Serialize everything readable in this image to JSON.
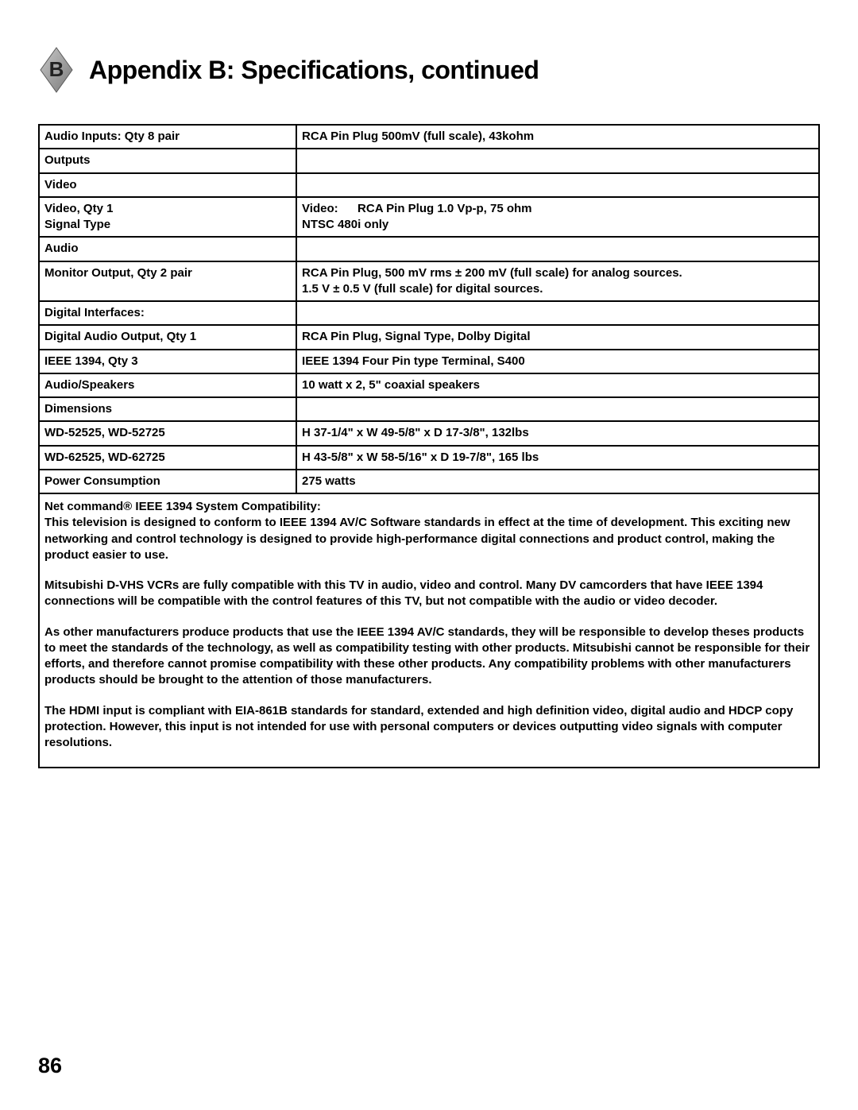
{
  "header": {
    "badge_letter": "B",
    "title": "Appendix B: Specifications, continued"
  },
  "table": {
    "rows": [
      {
        "left": "Audio Inputs: Qty 8 pair",
        "right": "RCA Pin Plug 500mV (full scale), 43kohm"
      },
      {
        "left": "Outputs",
        "right": "",
        "section": true
      },
      {
        "left": "Video",
        "right": ""
      },
      {
        "left": "Video, Qty 1\nSignal Type",
        "right_label": "Video:",
        "right_a": "RCA Pin Plug 1.0 Vp-p, 75 ohm",
        "right_b": "NTSC 480i only",
        "two_line": true
      },
      {
        "left": "Audio",
        "right": ""
      },
      {
        "left": "Monitor Output, Qty 2 pair",
        "right": "RCA Pin Plug, 500 mV rms ± 200 mV (full scale) for analog sources.\n1.5 V ± 0.5 V (full scale) for digital sources."
      },
      {
        "left": "Digital Interfaces:",
        "right": ""
      },
      {
        "left": "Digital Audio Output, Qty 1",
        "right": "RCA Pin Plug, Signal Type, Dolby Digital"
      },
      {
        "left": "IEEE 1394, Qty 3",
        "right": "IEEE 1394 Four Pin type Terminal, S400"
      },
      {
        "left": "Audio/Speakers",
        "right": "10 watt x 2, 5\" coaxial speakers"
      },
      {
        "left": "Dimensions",
        "right": ""
      },
      {
        "left": "WD-52525, WD-52725",
        "right": "H 37-1/4\" x W 49-5/8\" x D 17-3/8\", 132lbs"
      },
      {
        "left": "WD-62525, WD-62725",
        "right": "H 43-5/8\" x W 58-5/16\" x D 19-7/8\", 165 lbs"
      },
      {
        "left": "Power Consumption",
        "right": "275 watts"
      }
    ]
  },
  "notes": {
    "heading": "Net command® IEEE 1394 System Compatibility:",
    "p1": "This television is designed to conform to IEEE 1394 AV/C Software standards in effect at the time of development.  This exciting new networking and control technology is designed to provide high-performance digital connections and product control, making the product easier to use.",
    "p2": "Mitsubishi D-VHS VCRs are fully compatible with this TV in audio, video and control.  Many DV camcorders that have IEEE 1394 connections will be compatible with the control features of this TV, but not compatible with the audio or video decoder.",
    "p3": "As other manufacturers produce products that use the IEEE 1394 AV/C standards, they will be responsible to develop theses products to meet the standards of the technology, as well as compatibility testing with other products. Mitsubishi cannot be responsible for their efforts, and therefore cannot promise compatibility with these other products.  Any compatibility problems with other manufacturers products should be brought to the attention of those manufacturers.",
    "p4": "The HDMI input is compliant with EIA-861B standards for standard, extended and high definition video, digital audio and HDCP copy protection.  However, this input is not intended for use with personal computers or devices outputting video signals with computer resolutions."
  },
  "page_number": "86",
  "style": {
    "badge_fill": "#9b9b9b",
    "badge_stroke": "#6e6e6e",
    "badge_text": "#2a2a2a"
  }
}
